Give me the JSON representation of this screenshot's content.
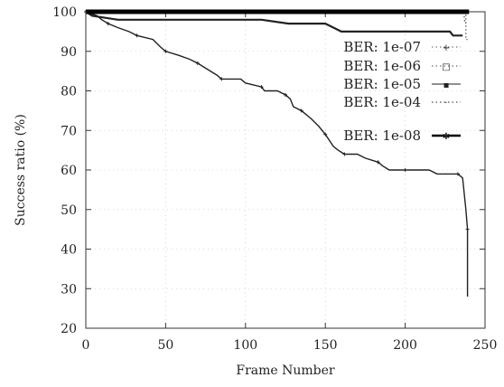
{
  "chart_data": {
    "type": "line",
    "xlabel": "Frame Number",
    "ylabel": "Success ratio (%)",
    "xlim": [
      0,
      250
    ],
    "ylim": [
      20,
      100
    ],
    "xticks": [
      0,
      50,
      100,
      150,
      200,
      250
    ],
    "yticks": [
      20,
      30,
      40,
      50,
      60,
      70,
      80,
      90,
      100
    ],
    "grid": true,
    "legend_position": "right",
    "series": [
      {
        "name": "BER: 1e-07",
        "color": "#555555",
        "style": "dotted",
        "points": [
          [
            0,
            100
          ],
          [
            237,
            100
          ],
          [
            238,
            100
          ],
          [
            238,
            97
          ],
          [
            238,
            93
          ],
          [
            239,
            93
          ]
        ]
      },
      {
        "name": "BER: 1e-06",
        "color": "#444444",
        "style": "dotted",
        "points": [
          [
            0,
            100
          ],
          [
            236,
            100
          ],
          [
            237,
            100
          ],
          [
            237,
            98
          ],
          [
            238,
            97
          ]
        ]
      },
      {
        "name": "BER: 1e-05",
        "color": "#222222",
        "style": "solid",
        "points": [
          [
            0,
            100
          ],
          [
            4,
            99
          ],
          [
            20,
            98
          ],
          [
            40,
            98
          ],
          [
            60,
            98
          ],
          [
            80,
            98
          ],
          [
            100,
            98
          ],
          [
            110,
            98
          ],
          [
            127,
            97
          ],
          [
            150,
            97
          ],
          [
            160,
            95
          ],
          [
            180,
            95
          ],
          [
            200,
            95
          ],
          [
            228,
            95
          ],
          [
            230,
            94
          ],
          [
            236,
            94
          ]
        ]
      },
      {
        "name": "BER: 1e-04",
        "color": "#222222",
        "style": "solid",
        "points": [
          [
            0,
            100
          ],
          [
            7,
            99
          ],
          [
            10,
            98
          ],
          [
            14,
            97
          ],
          [
            20,
            96
          ],
          [
            27,
            95
          ],
          [
            32,
            94
          ],
          [
            42,
            93
          ],
          [
            47,
            91
          ],
          [
            50,
            90
          ],
          [
            58,
            89
          ],
          [
            65,
            88
          ],
          [
            70,
            87
          ],
          [
            78,
            85
          ],
          [
            82,
            84
          ],
          [
            85,
            83
          ],
          [
            97,
            83
          ],
          [
            100,
            82
          ],
          [
            110,
            81
          ],
          [
            112,
            80
          ],
          [
            120,
            80
          ],
          [
            125,
            79
          ],
          [
            128,
            78
          ],
          [
            130,
            76
          ],
          [
            135,
            75
          ],
          [
            141,
            73
          ],
          [
            146,
            71
          ],
          [
            150,
            69
          ],
          [
            155,
            66
          ],
          [
            158,
            65
          ],
          [
            162,
            64
          ],
          [
            170,
            64
          ],
          [
            175,
            63
          ],
          [
            183,
            62
          ],
          [
            186,
            61
          ],
          [
            190,
            60
          ],
          [
            200,
            60
          ],
          [
            215,
            60
          ],
          [
            220,
            59
          ],
          [
            233,
            59
          ],
          [
            236,
            58
          ],
          [
            238,
            50
          ],
          [
            239,
            45
          ],
          [
            239,
            28
          ]
        ]
      },
      {
        "name": "BER: 1e-08",
        "color": "#000000",
        "style": "solid",
        "points": [
          [
            0,
            100
          ],
          [
            240,
            100
          ]
        ]
      }
    ]
  }
}
